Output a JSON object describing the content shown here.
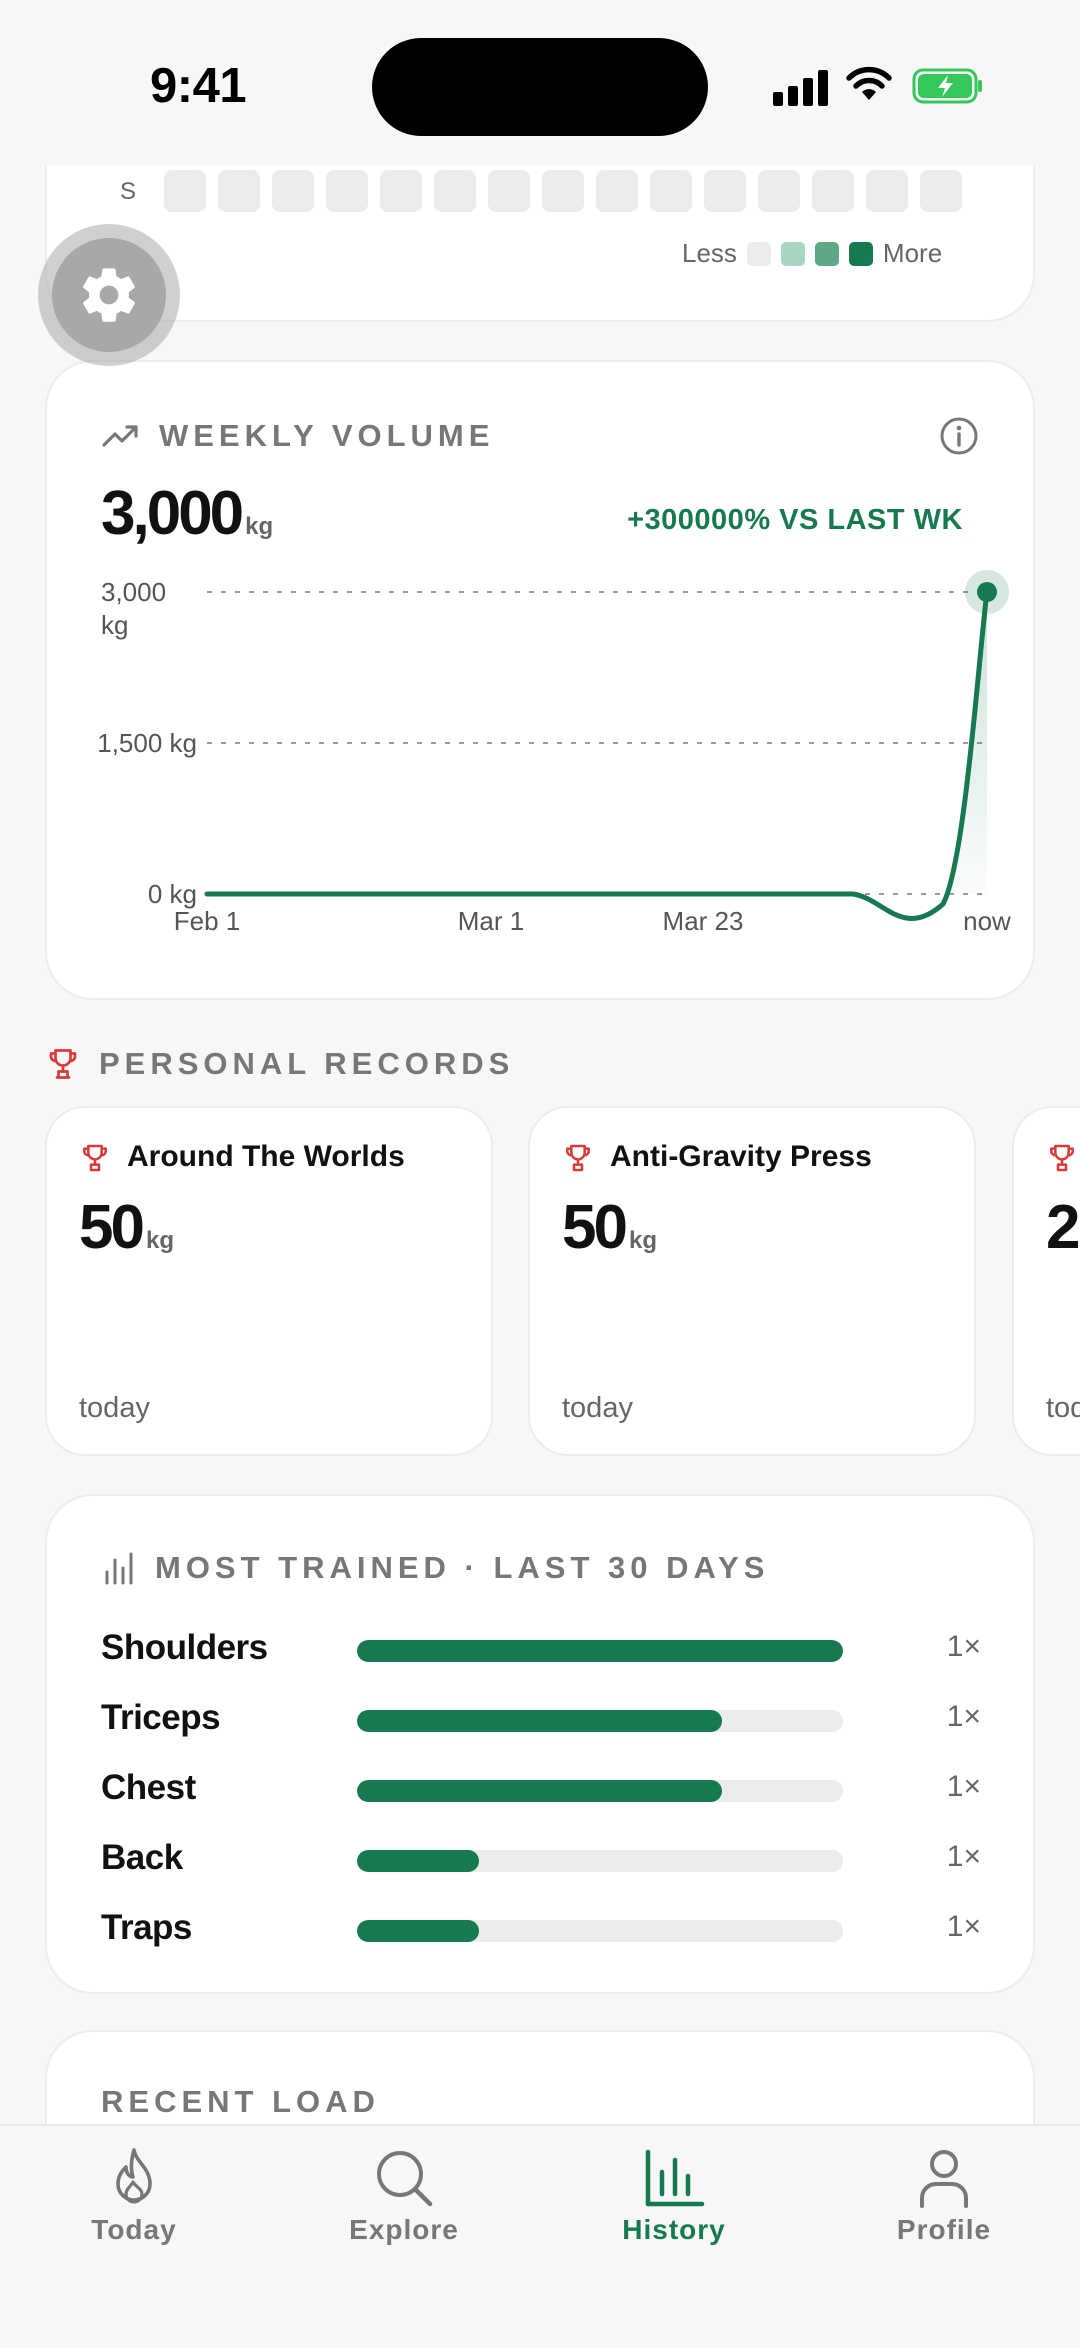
{
  "status_bar": {
    "time": "9:41"
  },
  "heatmap": {
    "day_label": "S",
    "legend_less": "Less",
    "legend_more": "More",
    "legend_colors": [
      "#ebebeb",
      "#a9d6c0",
      "#5fa886",
      "#16794f"
    ]
  },
  "weekly_volume": {
    "title": "WEEKLY VOLUME",
    "value": "3,000",
    "unit": "kg",
    "delta": "+300000% VS LAST WK",
    "chart_data": {
      "type": "line",
      "x": [
        "Feb 1",
        "Mar 1",
        "Mar 23",
        "now"
      ],
      "series": [
        {
          "values": [
            0,
            0,
            0,
            3000
          ]
        }
      ],
      "y_ticks": [
        "3,000 kg",
        "1,500 kg",
        "0 kg"
      ],
      "ylim": [
        0,
        3000
      ],
      "grid": true,
      "color": "#16794f"
    }
  },
  "personal_records": {
    "title": "PERSONAL RECORDS",
    "items": [
      {
        "name": "Around The Worlds",
        "value": "50",
        "unit": "kg",
        "date": "today"
      },
      {
        "name": "Anti-Gravity Press",
        "value": "50",
        "unit": "kg",
        "date": "today"
      },
      {
        "name": "",
        "value": "2",
        "unit": "",
        "date": "tod"
      }
    ]
  },
  "most_trained": {
    "title": "MOST TRAINED · LAST 30 DAYS",
    "rows": [
      {
        "label": "Shoulders",
        "fraction": 1.0,
        "count": "1×"
      },
      {
        "label": "Triceps",
        "fraction": 0.75,
        "count": "1×"
      },
      {
        "label": "Chest",
        "fraction": 0.75,
        "count": "1×"
      },
      {
        "label": "Back",
        "fraction": 0.25,
        "count": "1×"
      },
      {
        "label": "Traps",
        "fraction": 0.25,
        "count": "1×"
      }
    ]
  },
  "recent_load": {
    "title": "RECENT LOAD"
  },
  "tabs": [
    {
      "label": "Today",
      "icon": "flame-icon",
      "active": false
    },
    {
      "label": "Explore",
      "icon": "search-icon",
      "active": false
    },
    {
      "label": "History",
      "icon": "bar-chart-icon",
      "active": true
    },
    {
      "label": "Profile",
      "icon": "person-icon",
      "active": false
    }
  ],
  "colors": {
    "accent": "#16794f",
    "record": "#d93a3a"
  }
}
